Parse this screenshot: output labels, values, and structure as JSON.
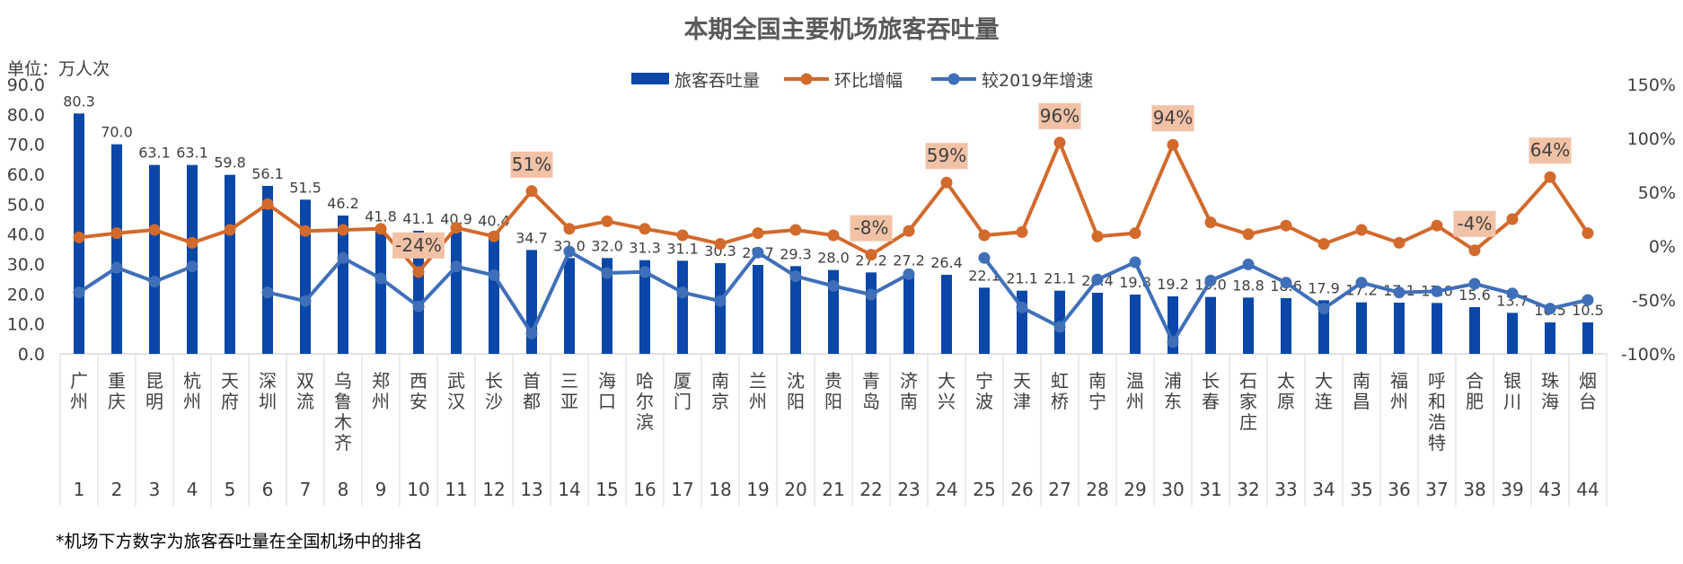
{
  "footnote": "*机场下方数字为旅客吞吐量在全国机场中的排名",
  "colors": {
    "bars": "#0a47a8",
    "mom": "#d26a2c",
    "vs2019": "#3f6fb8",
    "callout": "#f2c2a6",
    "grid": "#d9d9d9"
  },
  "chart_data": {
    "type": "bar",
    "title": "本期全国主要机场旅客吞吐量",
    "unit_label": "单位：万人次",
    "categories": [
      "广州",
      "重庆",
      "昆明",
      "杭州",
      "天府",
      "深圳",
      "双流",
      "乌鲁木齐",
      "郑州",
      "西安",
      "武汉",
      "长沙",
      "首都",
      "三亚",
      "海口",
      "哈尔滨",
      "厦门",
      "南京",
      "兰州",
      "沈阳",
      "贵阳",
      "青岛",
      "济南",
      "大兴",
      "宁波",
      "天津",
      "虹桥",
      "南宁",
      "温州",
      "浦东",
      "长春",
      "石家庄",
      "太原",
      "大连",
      "南昌",
      "福州",
      "呼和浩特",
      "合肥",
      "银川",
      "珠海",
      "烟台"
    ],
    "ranks": [
      "1",
      "2",
      "3",
      "4",
      "5",
      "6",
      "7",
      "8",
      "9",
      "10",
      "11",
      "12",
      "13",
      "14",
      "15",
      "16",
      "17",
      "18",
      "19",
      "20",
      "21",
      "22",
      "23",
      "24",
      "25",
      "26",
      "27",
      "28",
      "29",
      "30",
      "31",
      "32",
      "33",
      "34",
      "35",
      "36",
      "37",
      "38",
      "39",
      "43",
      "44"
    ],
    "series": [
      {
        "name": "旅客吞吐量",
        "type": "bar",
        "axis": "left",
        "values": [
          80.3,
          70.0,
          63.1,
          63.1,
          59.8,
          56.1,
          51.5,
          46.2,
          41.8,
          41.1,
          40.9,
          40.4,
          34.7,
          32.0,
          32.0,
          31.3,
          31.1,
          30.3,
          29.7,
          29.3,
          28.0,
          27.2,
          27.2,
          26.4,
          22.1,
          21.1,
          21.1,
          20.4,
          19.8,
          19.2,
          19.0,
          18.8,
          18.6,
          17.9,
          17.2,
          17.1,
          17.0,
          15.6,
          13.7,
          10.5,
          10.5
        ],
        "labels": [
          "80.3",
          "70.0",
          "63.1",
          "63.1",
          "59.8",
          "56.1",
          "51.5",
          "46.2",
          "41.8",
          "41.1",
          "40.9",
          "40.4",
          "34.7",
          "32.0",
          "32.0",
          "31.3",
          "31.1",
          "30.3",
          "29.7",
          "29.3",
          "28.0",
          "27.2",
          "27.2",
          "26.4",
          "22.1",
          "21.1",
          "21.1",
          "20.4",
          "19.8",
          "19.2",
          "19.0",
          "18.8",
          "18.6",
          "17.9",
          "17.2",
          "17.1",
          "17.0",
          "15.6",
          "13.7",
          "10.5",
          "10.5"
        ]
      },
      {
        "name": "环比增幅",
        "type": "line",
        "axis": "right",
        "values": [
          8,
          12,
          15,
          3,
          15,
          39,
          14,
          15,
          16,
          -24,
          17,
          9,
          51,
          16,
          23,
          16,
          10,
          2,
          12,
          15,
          10,
          -8,
          14,
          59,
          10,
          13,
          96,
          9,
          12,
          94,
          22,
          11,
          19,
          2,
          15,
          3,
          19,
          -4,
          25,
          64,
          12
        ],
        "callouts": [
          {
            "index": 9,
            "text": "-24%"
          },
          {
            "index": 12,
            "text": "51%"
          },
          {
            "index": 21,
            "text": "-8%"
          },
          {
            "index": 23,
            "text": "59%"
          },
          {
            "index": 26,
            "text": "96%"
          },
          {
            "index": 29,
            "text": "94%"
          },
          {
            "index": 37,
            "text": "-4%"
          },
          {
            "index": 39,
            "text": "64%"
          }
        ]
      },
      {
        "name": "较2019年增速",
        "type": "line",
        "axis": "right",
        "values": [
          -43,
          -20,
          -33,
          -19,
          null,
          -43,
          -51,
          -11,
          -30,
          -56,
          -19,
          -27,
          -81,
          -5,
          -25,
          -24,
          -43,
          -51,
          -6,
          -28,
          -37,
          -45,
          -26,
          null,
          -11,
          -57,
          -75,
          -31,
          -15,
          -89,
          -32,
          -17,
          -34,
          -58,
          -34,
          -43,
          -42,
          -35,
          -44,
          -58,
          -50
        ]
      }
    ],
    "y_left": {
      "min": 0,
      "max": 90,
      "step": 10,
      "ticks": [
        "0.0",
        "10.0",
        "20.0",
        "30.0",
        "40.0",
        "50.0",
        "60.0",
        "70.0",
        "80.0",
        "90.0"
      ]
    },
    "y_right": {
      "min": -100,
      "max": 150,
      "step": 50,
      "ticks": [
        "-100%",
        "-50%",
        "0%",
        "50%",
        "100%",
        "150%"
      ]
    },
    "legend": {
      "position": "top-center"
    },
    "grid": "none"
  }
}
